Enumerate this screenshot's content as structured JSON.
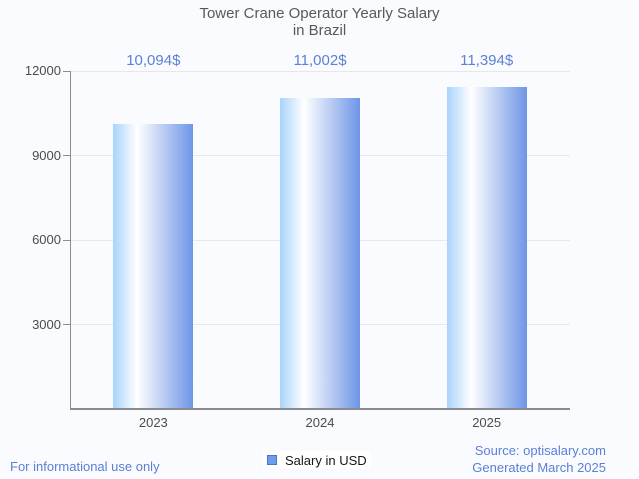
{
  "title": {
    "lines": [
      "Tower Crane Operator Yearly Salary",
      "in Brazil"
    ]
  },
  "chart_data": {
    "type": "bar",
    "title": "Tower Crane Operator Yearly Salary in Brazil",
    "categories": [
      "2023",
      "2024",
      "2025"
    ],
    "series": [
      {
        "name": "Salary in USD",
        "values": [
          10094,
          11002,
          11394
        ]
      }
    ],
    "value_labels": [
      "10,094$",
      "11,002$",
      "11,394$"
    ],
    "xlabel": "",
    "ylabel": "",
    "yticks": [
      3000,
      6000,
      9000,
      12000
    ],
    "ylim": [
      0,
      12000
    ],
    "grid": true,
    "legend_position": "bottom"
  },
  "legend": {
    "label": "Salary in USD",
    "marker_color": "#6d9eeb",
    "marker_border": "#4777c8"
  },
  "footer": {
    "disclaimer": "For informational use only",
    "source": "Source: optisalary.com",
    "generated": "Generated March 2025"
  },
  "colors": {
    "accent_text": "#5b80d5",
    "bar_gradient": [
      "#a8d3fb",
      "#ffffff",
      "#6e95e6"
    ],
    "axis": "#8a8c8e",
    "grid": "#e6e8ea",
    "background": "#fafbfe"
  }
}
